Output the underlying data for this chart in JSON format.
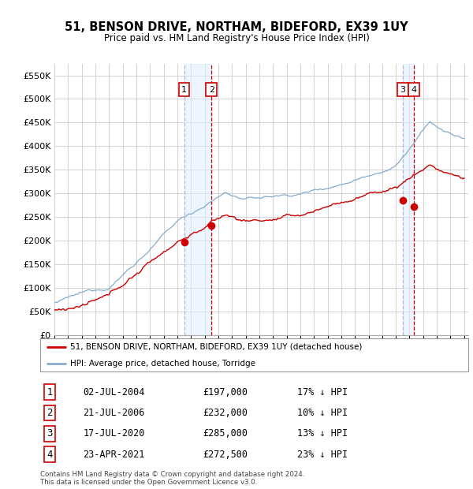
{
  "title": "51, BENSON DRIVE, NORTHAM, BIDEFORD, EX39 1UY",
  "subtitle": "Price paid vs. HM Land Registry's House Price Index (HPI)",
  "ylim": [
    0,
    575000
  ],
  "yticks": [
    0,
    50000,
    100000,
    150000,
    200000,
    250000,
    300000,
    350000,
    400000,
    450000,
    500000,
    550000
  ],
  "xlim_start": 1995.0,
  "xlim_end": 2025.3,
  "legend_line1": "51, BENSON DRIVE, NORTHAM, BIDEFORD, EX39 1UY (detached house)",
  "legend_line2": "HPI: Average price, detached house, Torridge",
  "red_line_color": "#cc0000",
  "blue_line_color": "#88aacc",
  "transactions": [
    {
      "num": 1,
      "date_x": 2004.5,
      "price": 197000,
      "label": "02-JUL-2004",
      "price_str": "£197,000",
      "pct": "17%",
      "vline_style": "dashed_blue"
    },
    {
      "num": 2,
      "date_x": 2006.5,
      "price": 232000,
      "label": "21-JUL-2006",
      "price_str": "£232,000",
      "pct": "10%",
      "vline_style": "dashed_red"
    },
    {
      "num": 3,
      "date_x": 2020.5,
      "price": 285000,
      "label": "17-JUL-2020",
      "price_str": "£285,000",
      "pct": "13%",
      "vline_style": "dashed_blue"
    },
    {
      "num": 4,
      "date_x": 2021.3,
      "price": 272500,
      "label": "23-APR-2021",
      "price_str": "£272,500",
      "pct": "23%",
      "vline_style": "dashed_red"
    }
  ],
  "footer1": "Contains HM Land Registry data © Crown copyright and database right 2024.",
  "footer2": "This data is licensed under the Open Government Licence v3.0.",
  "background_color": "#ffffff",
  "grid_color": "#cccccc",
  "shade_color": "#ddeeff",
  "shade_alpha": 0.5
}
